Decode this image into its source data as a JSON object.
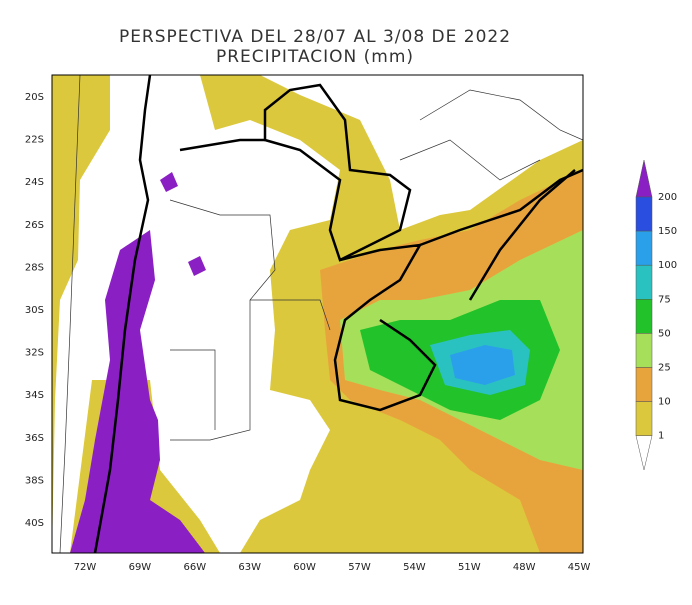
{
  "header": {
    "title": "PERSPECTIVA DEL 28/07 AL 3/08 DE 2022",
    "subtitle": "PRECIPITACION (mm)"
  },
  "map": {
    "lat_labels": [
      "20S",
      "22S",
      "24S",
      "26S",
      "28S",
      "30S",
      "32S",
      "34S",
      "36S",
      "38S",
      "40S"
    ],
    "lon_labels": [
      "72W",
      "69W",
      "66W",
      "63W",
      "60W",
      "57W",
      "54W",
      "51W",
      "48W",
      "45W"
    ]
  },
  "legend": {
    "levels": [
      "200",
      "150",
      "100",
      "75",
      "50",
      "25",
      "10",
      "1"
    ],
    "colors": [
      "#8a1fc4",
      "#2a4fe0",
      "#2aa0ea",
      "#2ac2c0",
      "#22c22a",
      "#a6e05a",
      "#e8a43c",
      "#dcc83c"
    ]
  }
}
